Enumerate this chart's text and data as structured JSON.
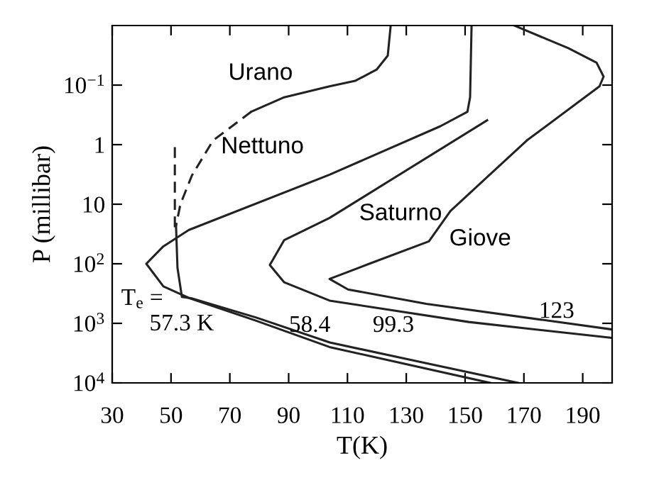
{
  "chart_data": {
    "type": "line",
    "xlabel": "T(K)",
    "ylabel": "P (millibar)",
    "xlim": [
      30,
      200
    ],
    "xticks": [
      30,
      50,
      70,
      90,
      110,
      130,
      150,
      170,
      190
    ],
    "ylim": [
      10000,
      0.01
    ],
    "log": true,
    "yticks": [
      {
        "value": 0.1,
        "label": "10$^{−1}$"
      },
      1,
      10,
      {
        "value": 100,
        "label": "10$^{2}$"
      },
      {
        "value": 1000,
        "label": "10$^{3}$"
      },
      {
        "value": 10000,
        "label": "10$^{4}$"
      }
    ],
    "grid": false,
    "legend": false,
    "marker": "none",
    "series": [
      {
        "name": "Urano",
        "color": "#222222",
        "line_style": "solid",
        "x": [
          124.7,
          123.7,
          119.9,
          112.6,
          103.9,
          88.5,
          77.3
        ],
        "values": [
          0.01,
          0.032,
          0.055,
          0.085,
          0.105,
          0.16,
          0.28
        ]
      },
      {
        "color": "#222222",
        "line_style": "dashed",
        "x": [
          77.3,
          64.3,
          57.1,
          53.2,
          51.7
        ],
        "values": [
          0.28,
          0.85,
          3.3,
          10,
          23
        ]
      },
      {
        "color": "#222222",
        "line_style": "solid",
        "x": [
          51.7,
          52.2,
          53.7,
          57,
          79,
          104,
          168
        ],
        "values": [
          23,
          117,
          360,
          380,
          800,
          2100,
          10000
        ]
      },
      {
        "color": "#222222",
        "line_style": "dashed",
        "x": [
          51.3,
          51.3
        ],
        "values": [
          1.1,
          30
        ]
      },
      {
        "name": "Nettuno",
        "color": "#222222",
        "line_style": "solid",
        "x": [
          152.2,
          151.7,
          150.8,
          141.6,
          103.9,
          56.1,
          47.4,
          41.6,
          47.4,
          56.1,
          78.8,
          103.9,
          158.5
        ],
        "values": [
          0.01,
          0.16,
          0.28,
          0.49,
          3.2,
          27,
          51,
          100,
          240,
          375,
          900,
          2500,
          10000
        ]
      },
      {
        "name": "Saturno",
        "color": "#222222",
        "line_style": "solid",
        "x": [
          157.5,
          103.9,
          88.5,
          83.6,
          88.5,
          103.9,
          151.3,
          199.6
        ],
        "values": [
          0.39,
          17,
          40,
          105,
          205,
          415,
          950,
          1750
        ]
      },
      {
        "name": "Giove",
        "color": "#222222",
        "line_style": "solid",
        "x": [
          166.7,
          185.1,
          194.7,
          197.1,
          195.7,
          171,
          145,
          137.7,
          117.4,
          103.9,
          110.2,
          136.8,
          199.6
        ],
        "values": [
          0.01,
          0.024,
          0.042,
          0.072,
          0.105,
          0.85,
          13,
          42,
          100,
          180,
          270,
          470,
          1260
        ]
      }
    ],
    "annotations": [
      "T$_{e}$ =",
      "57.3 K",
      "58.4",
      "99.3",
      "123"
    ]
  }
}
